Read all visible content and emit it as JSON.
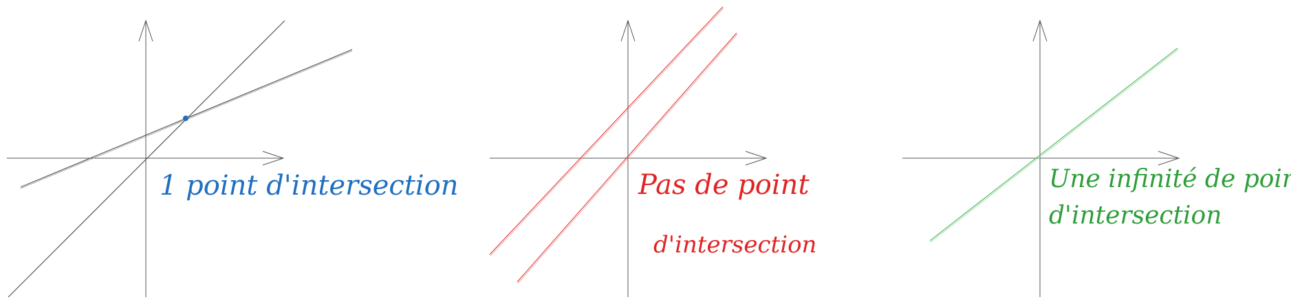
{
  "panels": [
    {
      "id": "one-point",
      "caption_lines": [
        "1 point d'intersection"
      ],
      "color": "#1f6fc0",
      "line_color": "#555555",
      "case": "secant lines"
    },
    {
      "id": "no-point",
      "caption_lines": [
        "Pas de point",
        "d'intersection"
      ],
      "color": "#e02424",
      "line_color": "#e02424",
      "case": "parallel lines"
    },
    {
      "id": "infinite-points",
      "caption_lines": [
        "Une infinité de points",
        "d'intersection"
      ],
      "color": "#2e9e3a",
      "line_color": "#5cbf65",
      "case": "coincident lines"
    }
  ]
}
